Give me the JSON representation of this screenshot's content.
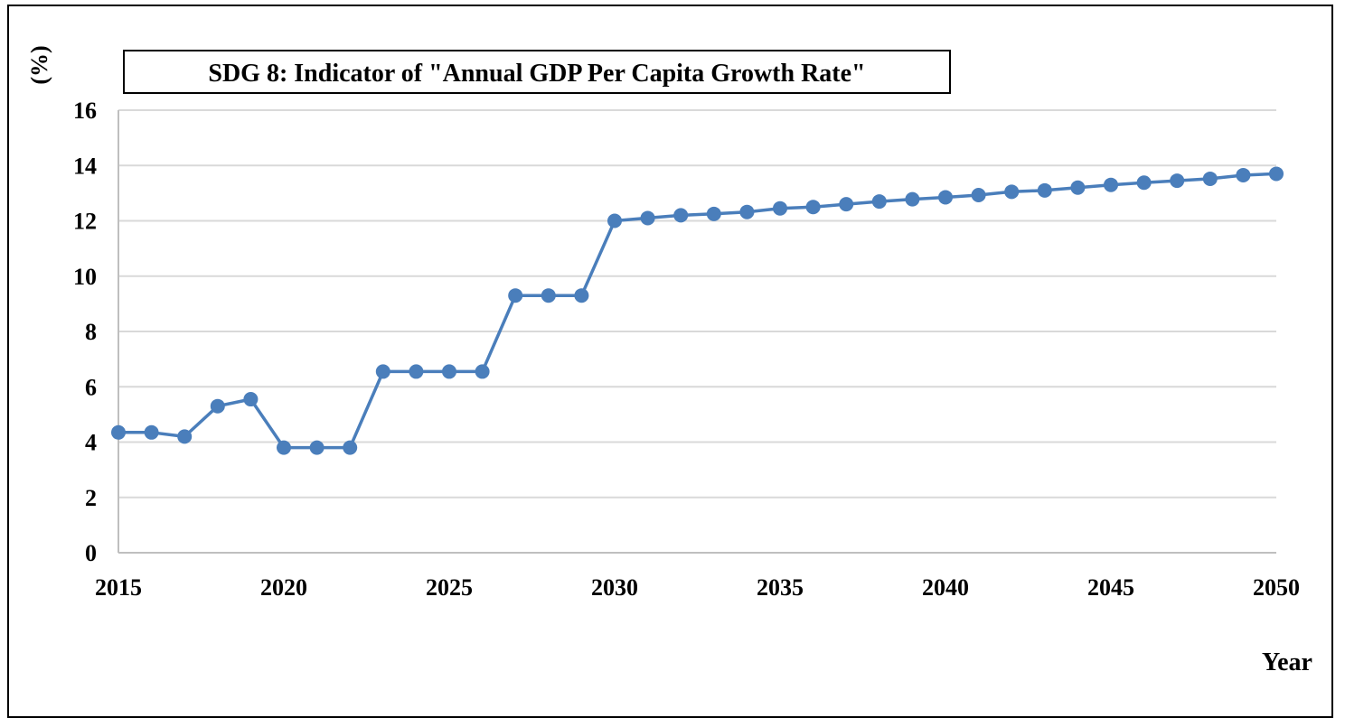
{
  "chart_data": {
    "type": "line",
    "title": "SDG 8: Indicator of \"Annual GDP Per Capita Growth Rate\"",
    "xlabel": "Year",
    "ylabel": "(%)",
    "xlim": [
      2015,
      2050
    ],
    "ylim": [
      0,
      16
    ],
    "x_ticks": [
      2015,
      2020,
      2025,
      2030,
      2035,
      2040,
      2045,
      2050
    ],
    "y_ticks": [
      0,
      2,
      4,
      6,
      8,
      10,
      12,
      14,
      16
    ],
    "grid": true,
    "legend": "none",
    "series_color": "#4a7ebb",
    "series": [
      {
        "x": [
          2015,
          2016,
          2017,
          2018,
          2019,
          2020,
          2021,
          2022,
          2023,
          2024,
          2025,
          2026,
          2027,
          2028,
          2029,
          2030,
          2031,
          2032,
          2033,
          2034,
          2035,
          2036,
          2037,
          2038,
          2039,
          2040,
          2041,
          2042,
          2043,
          2044,
          2045,
          2046,
          2047,
          2048,
          2049,
          2050
        ],
        "values": [
          4.35,
          4.35,
          4.2,
          5.3,
          5.55,
          3.8,
          3.8,
          3.8,
          6.55,
          6.55,
          6.55,
          6.55,
          9.3,
          9.3,
          9.3,
          12.0,
          12.1,
          12.2,
          12.25,
          12.32,
          12.45,
          12.5,
          12.6,
          12.7,
          12.78,
          12.85,
          12.93,
          13.05,
          13.1,
          13.2,
          13.3,
          13.38,
          13.45,
          13.52,
          13.65,
          13.7
        ]
      }
    ]
  }
}
